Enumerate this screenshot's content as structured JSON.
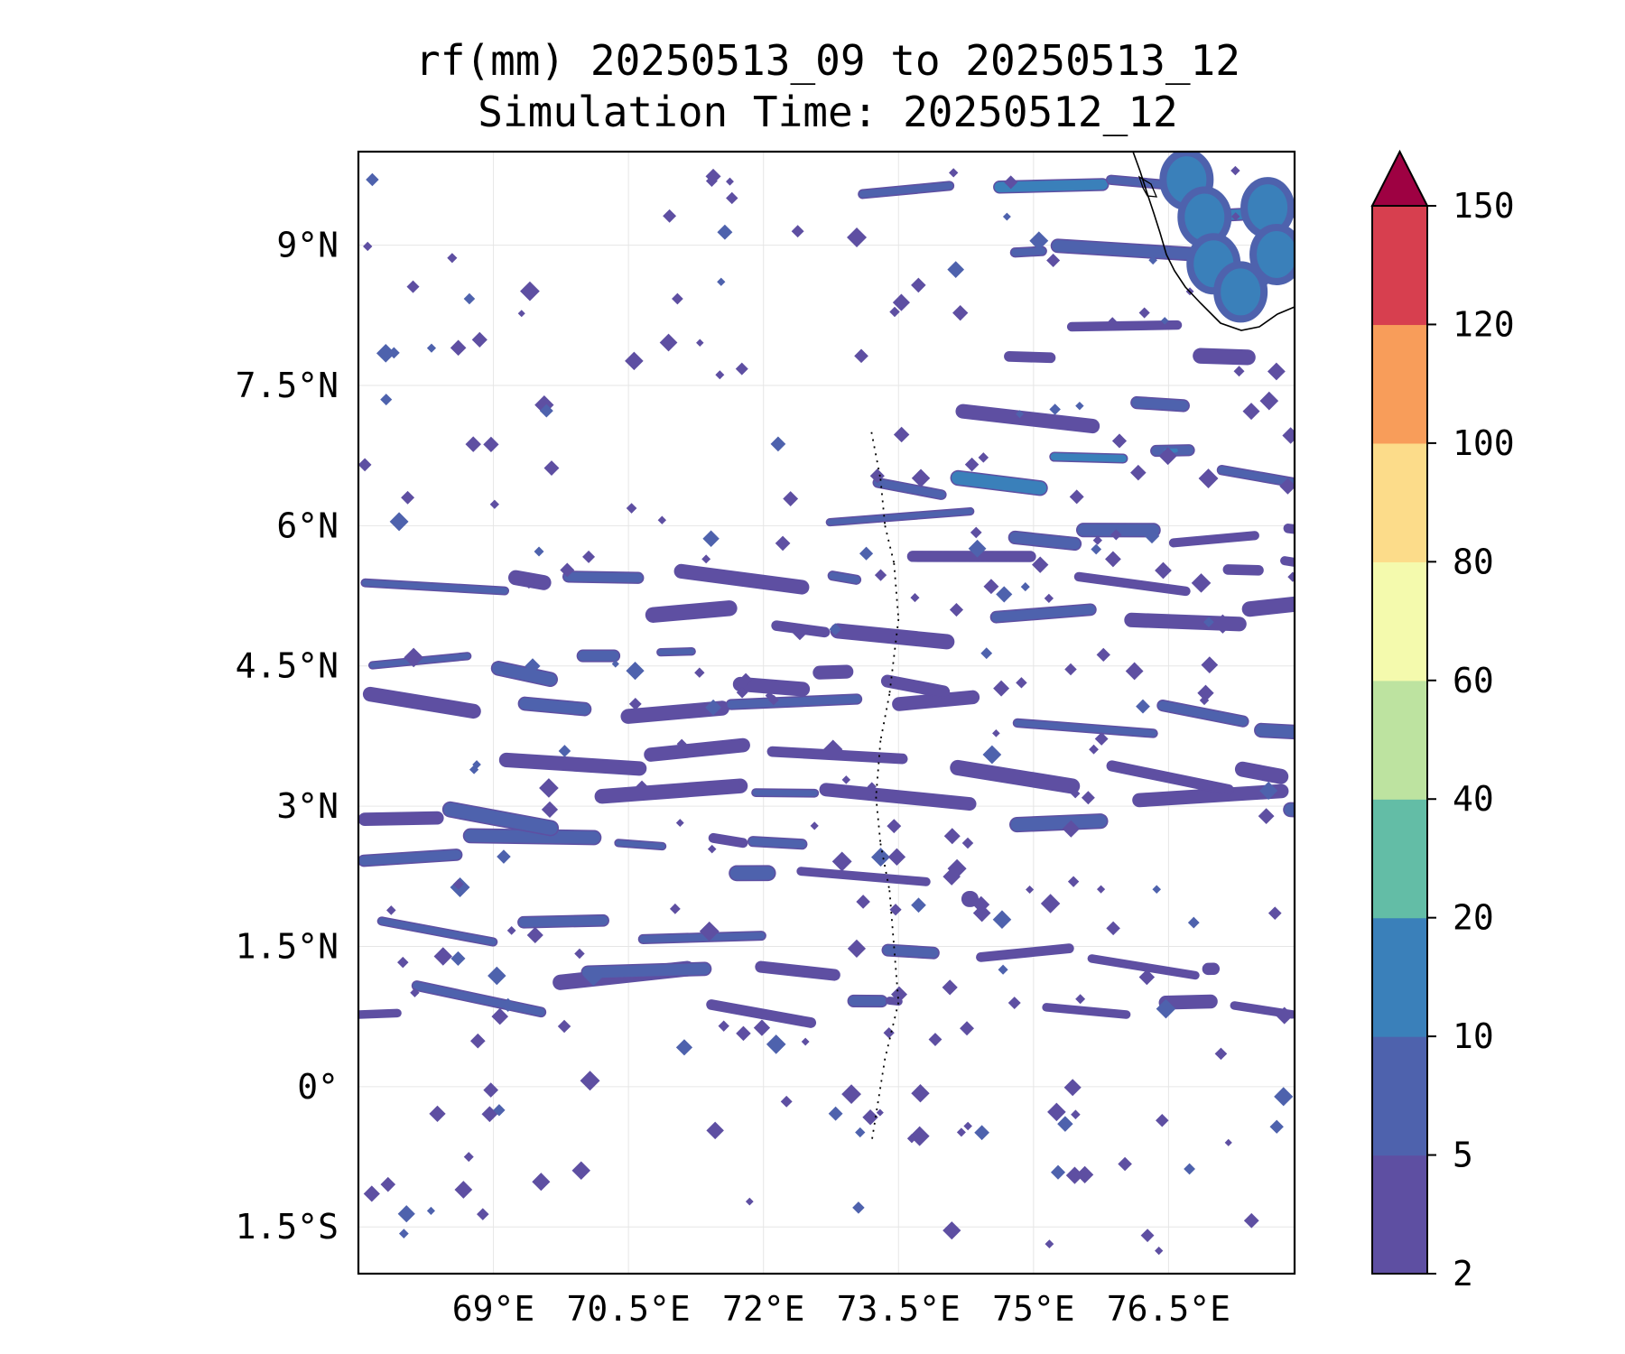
{
  "title": "rf(mm) 20250513_09 to 20250513_12",
  "subtitle": "Simulation Time: 20250512_12",
  "chart_data": {
    "type": "heatmap",
    "title": "rf(mm) 20250513_09 to 20250513_12",
    "subtitle": "Simulation Time: 20250512_12",
    "variable": "rf",
    "units": "mm",
    "x_range_lon": [
      67.5,
      77.9
    ],
    "y_range_lat": [
      -2.0,
      10.0
    ],
    "x_ticks": [
      {
        "value": 69.0,
        "label": "69°E"
      },
      {
        "value": 70.5,
        "label": "70.5°E"
      },
      {
        "value": 72.0,
        "label": "72°E"
      },
      {
        "value": 73.5,
        "label": "73.5°E"
      },
      {
        "value": 75.0,
        "label": "75°E"
      },
      {
        "value": 76.5,
        "label": "76.5°E"
      }
    ],
    "y_ticks": [
      {
        "value": 9.0,
        "label": "9°N"
      },
      {
        "value": 7.5,
        "label": "7.5°N"
      },
      {
        "value": 6.0,
        "label": "6°N"
      },
      {
        "value": 4.5,
        "label": "4.5°N"
      },
      {
        "value": 3.0,
        "label": "3°N"
      },
      {
        "value": 1.5,
        "label": "1.5°N"
      },
      {
        "value": 0.0,
        "label": "0°"
      },
      {
        "value": -1.5,
        "label": "1.5°S"
      }
    ],
    "grid": true,
    "colorbar": {
      "levels": [
        2,
        5,
        10,
        20,
        40,
        60,
        80,
        100,
        120,
        150
      ],
      "labels": [
        "2",
        "5",
        "10",
        "20",
        "40",
        "60",
        "80",
        "100",
        "120",
        "150"
      ],
      "colors": [
        "#5e4fa2",
        "#4e62ad",
        "#3a80ba",
        "#63bda6",
        "#bde3a0",
        "#f4faad",
        "#fcdc8a",
        "#f89d5a",
        "#d73f4f",
        "#9e0142"
      ],
      "extend": "max",
      "extend_color": "#9e0142"
    },
    "rain_bands": [
      {
        "lat": 0.75,
        "lon_start": 74.9,
        "lon_end": 77.9,
        "intensity": 5
      },
      {
        "lat": 0.95,
        "lon_start": 67.5,
        "lon_end": 73.5,
        "intensity": 5
      },
      {
        "lat": 1.3,
        "lon_start": 70.0,
        "lon_end": 77.0,
        "intensity": 5
      },
      {
        "lat": 1.75,
        "lon_start": 67.5,
        "lon_end": 72.5,
        "intensity": 5
      },
      {
        "lat": 2.15,
        "lon_start": 71.5,
        "lon_end": 74.3,
        "intensity": 5
      },
      {
        "lat": 2.5,
        "lon_start": 67.5,
        "lon_end": 73.0,
        "intensity": 5
      },
      {
        "lat": 3.0,
        "lon_start": 67.5,
        "lon_end": 77.9,
        "intensity": 5
      },
      {
        "lat": 3.5,
        "lon_start": 69.0,
        "lon_end": 77.9,
        "intensity": 5
      },
      {
        "lat": 4.0,
        "lon_start": 67.5,
        "lon_end": 77.9,
        "intensity": 5
      },
      {
        "lat": 4.5,
        "lon_start": 67.5,
        "lon_end": 74.0,
        "intensity": 5
      },
      {
        "lat": 5.0,
        "lon_start": 70.5,
        "lon_end": 77.9,
        "intensity": 5
      },
      {
        "lat": 5.5,
        "lon_start": 67.5,
        "lon_end": 77.9,
        "intensity": 5
      },
      {
        "lat": 6.0,
        "lon_start": 72.5,
        "lon_end": 77.9,
        "intensity": 5
      },
      {
        "lat": 6.6,
        "lon_start": 73.0,
        "lon_end": 77.9,
        "intensity": 10
      },
      {
        "lat": 7.3,
        "lon_start": 74.0,
        "lon_end": 77.0,
        "intensity": 5
      },
      {
        "lat": 8.0,
        "lon_start": 74.5,
        "lon_end": 77.5,
        "intensity": 5
      },
      {
        "lat": 8.9,
        "lon_start": 74.5,
        "lon_end": 77.0,
        "intensity": 10
      },
      {
        "lat": 9.5,
        "lon_start": 73.0,
        "lon_end": 77.9,
        "intensity": 10
      }
    ],
    "coastline": "southern tip of India, top-right corner"
  }
}
